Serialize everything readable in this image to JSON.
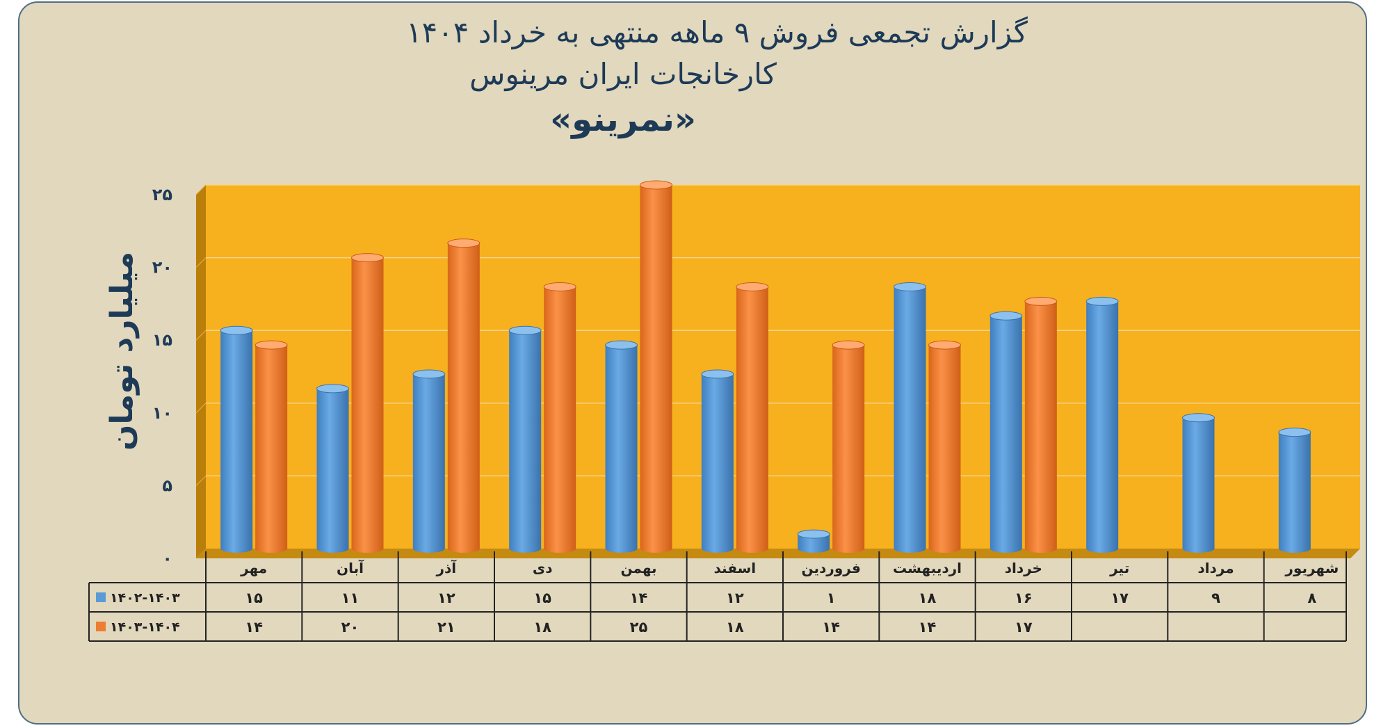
{
  "header": {
    "line1": "گزارش تجمعی فروش ۹ ماهه منتهی به خرداد ۱۴۰۴",
    "line2": "کارخانجات ایران مرینوس",
    "line3": "«نمرینو»"
  },
  "colors": {
    "plot_background": "#f7b01e",
    "series_1": "#5b9bd5",
    "series_2": "#ed7d31",
    "text": "#1d3a57"
  },
  "chart_data": {
    "type": "bar",
    "title": "گزارش تجمعی فروش ۹ ماهه منتهی به خرداد ۱۴۰۴",
    "ylabel": "میلیارد تومان",
    "xlabel": "",
    "ylim": [
      0,
      25
    ],
    "yticks": [
      0,
      5,
      10,
      15,
      20,
      25
    ],
    "ytick_labels": [
      "۰",
      "۵",
      "۱۰",
      "۱۵",
      "۲۰",
      "۲۵"
    ],
    "grid": true,
    "legend_placement": "data-table-left",
    "categories": [
      "مهر",
      "آبان",
      "آذر",
      "دی",
      "بهمن",
      "اسفند",
      "فروردین",
      "اردیبهشت",
      "خرداد",
      "تیر",
      "مرداد",
      "شهریور"
    ],
    "series": [
      {
        "name": "۱۴۰۲-۱۴۰۳",
        "values": [
          15,
          11,
          12,
          15,
          14,
          12,
          1,
          18,
          16,
          17,
          9,
          8
        ],
        "labels": [
          "۱۵",
          "۱۱",
          "۱۲",
          "۱۵",
          "۱۴",
          "۱۲",
          "۱",
          "۱۸",
          "۱۶",
          "۱۷",
          "۹",
          "۸"
        ]
      },
      {
        "name": "۱۴۰۳-۱۴۰۴",
        "values": [
          14,
          20,
          21,
          18,
          25,
          18,
          14,
          14,
          17,
          null,
          null,
          null
        ],
        "labels": [
          "۱۴",
          "۲۰",
          "۲۱",
          "۱۸",
          "۲۵",
          "۱۸",
          "۱۴",
          "۱۴",
          "۱۷",
          "",
          "",
          ""
        ]
      }
    ]
  }
}
